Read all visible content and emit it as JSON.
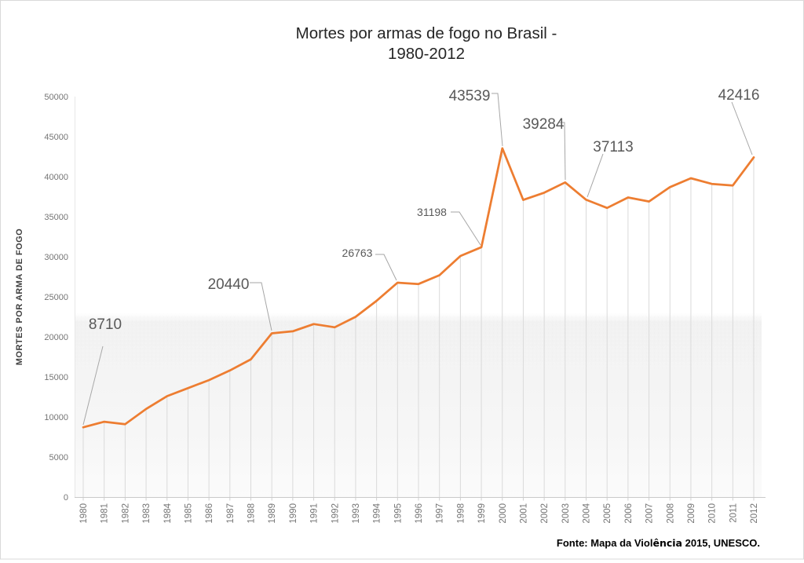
{
  "title": {
    "line1": "Mortes por armas de fogo no Brasil -",
    "line2": "1980-2012"
  },
  "source": {
    "prefix": "Fonte: Mapa da Viol",
    "accent": "ência",
    "suffix": " 2015, UNESCO."
  },
  "colors": {
    "series_line": "#ED7D31",
    "leader_line": "#A6A6A6",
    "drop_line": "#DADADA",
    "axis_line": "#C9C9C9",
    "tick_text": "#757575",
    "annotation_text": "#595959",
    "title_text": "#262626",
    "frame_border": "#D9D9D9"
  },
  "chart_data": {
    "type": "line",
    "title": "Mortes por armas de fogo no Brasil - 1980-2012",
    "xlabel": "",
    "ylabel": "MORTES POR ARMA DE FOGO",
    "ylim": [
      0,
      50000
    ],
    "yticks": [
      0,
      5000,
      10000,
      15000,
      20000,
      25000,
      30000,
      35000,
      40000,
      45000,
      50000
    ],
    "grid": false,
    "drop_lines": true,
    "legend": "none",
    "x": [
      1980,
      1981,
      1982,
      1983,
      1984,
      1985,
      1986,
      1987,
      1988,
      1989,
      1990,
      1991,
      1992,
      1993,
      1994,
      1995,
      1996,
      1997,
      1998,
      1999,
      2000,
      2001,
      2002,
      2003,
      2004,
      2005,
      2006,
      2007,
      2008,
      2009,
      2010,
      2011,
      2012
    ],
    "values": [
      8710,
      9400,
      9100,
      11000,
      12600,
      13600,
      14600,
      15800,
      17200,
      20440,
      20700,
      21600,
      21200,
      22500,
      24500,
      26763,
      26600,
      27700,
      30100,
      31198,
      43539,
      37100,
      38000,
      39284,
      37113,
      36100,
      37400,
      36900,
      38700,
      39800,
      39100,
      38900,
      42416
    ],
    "annotations": [
      {
        "year": 1980,
        "text": "8710",
        "size": "large"
      },
      {
        "year": 1989,
        "text": "20440",
        "size": "large"
      },
      {
        "year": 1995,
        "text": "26763",
        "size": "small"
      },
      {
        "year": 1999,
        "text": "31198",
        "size": "small"
      },
      {
        "year": 2000,
        "text": "43539",
        "size": "large"
      },
      {
        "year": 2003,
        "text": "39284",
        "size": "large"
      },
      {
        "year": 2004,
        "text": "37113",
        "size": "large"
      },
      {
        "year": 2012,
        "text": "42416",
        "size": "large"
      }
    ]
  }
}
